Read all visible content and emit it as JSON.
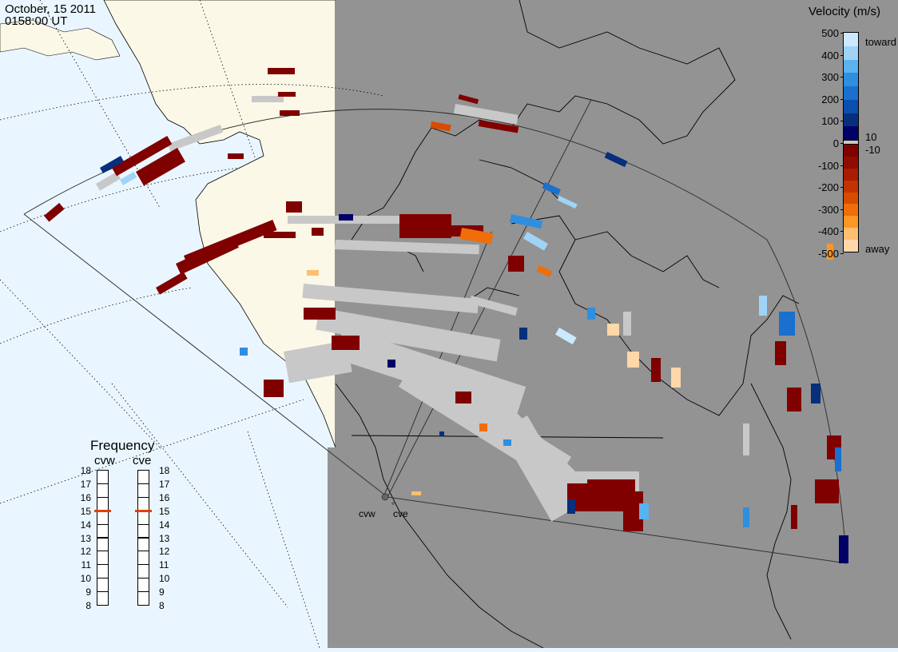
{
  "header": {
    "date": "October, 15 2011",
    "time": "0158:00 UT"
  },
  "velocity_scale": {
    "title": "Velocity (m/s)",
    "ticks": [
      "500",
      "400",
      "300",
      "200",
      "100",
      "0",
      "-100",
      "-200",
      "-300",
      "-400",
      "-500"
    ],
    "extra_labels": {
      "toward": "toward",
      "away": "away",
      "plus10": "10",
      "minus10": "-10"
    },
    "colors_top_to_bottom": [
      "#cbeaff",
      "#9fd4f7",
      "#5ab2ef",
      "#2e8ee0",
      "#1a6fcf",
      "#0b4fae",
      "#072f7c",
      "#000066"
    ],
    "colors_neg_top_to_bottom": [
      "#800000",
      "#8e0d00",
      "#a81c00",
      "#c23300",
      "#d94b00",
      "#ef6e0a",
      "#fc9624",
      "#ffbe70",
      "#ffd7a8"
    ]
  },
  "frequency_panel": {
    "title": "Frequency",
    "left_radar": "cvw",
    "right_radar": "cve",
    "ticks": [
      "18",
      "17",
      "16",
      "15",
      "14",
      "13",
      "12",
      "11",
      "10",
      "9",
      "8"
    ],
    "cvw_mhz": 15,
    "cve_mhz": 15
  },
  "radars": {
    "west": "cvw",
    "east": "cve"
  },
  "colors": {
    "ocean": "#eaf6ff",
    "land_day": "#fbf8e8",
    "night": "#939393",
    "ground_scatter": "#c8c8c8",
    "marker": "#e04000"
  }
}
